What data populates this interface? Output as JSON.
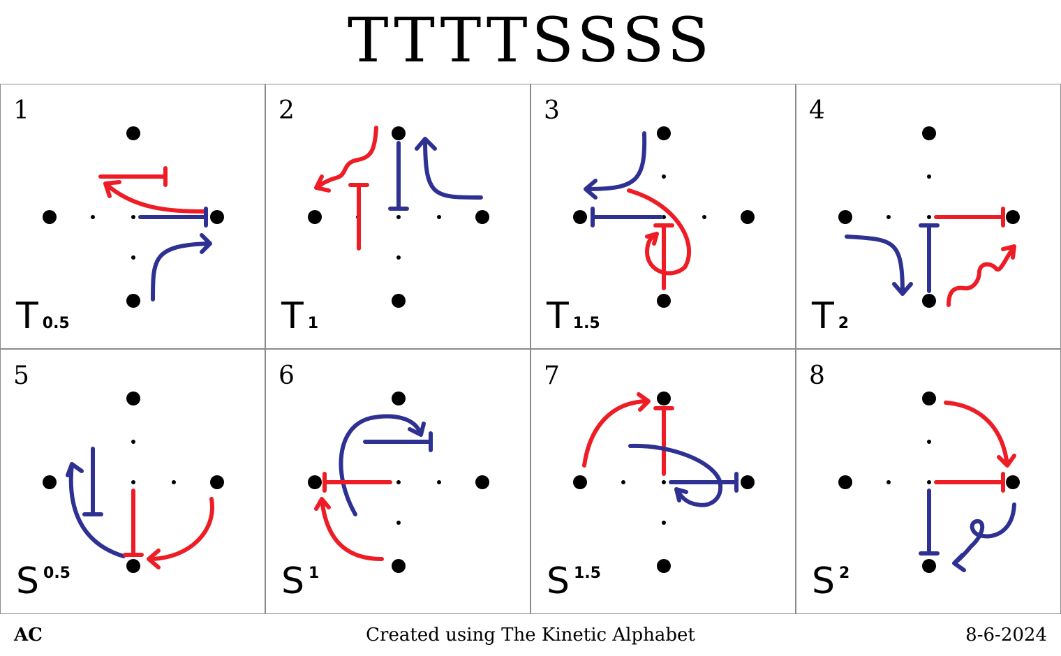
{
  "title": "TTTTSSSS",
  "cells": [
    {
      "number": "1",
      "letter": "T",
      "index": "0.5",
      "index_pos": "sub"
    },
    {
      "number": "2",
      "letter": "T",
      "index": "1",
      "index_pos": "sub"
    },
    {
      "number": "3",
      "letter": "T",
      "index": "1.5",
      "index_pos": "sub"
    },
    {
      "number": "4",
      "letter": "T",
      "index": "2",
      "index_pos": "sub"
    },
    {
      "number": "5",
      "letter": "S",
      "index": "0.5",
      "index_pos": "sup"
    },
    {
      "number": "6",
      "letter": "S",
      "index": "1",
      "index_pos": "sup"
    },
    {
      "number": "7",
      "letter": "S",
      "index": "1.5",
      "index_pos": "sup"
    },
    {
      "number": "8",
      "letter": "S",
      "index": "2",
      "index_pos": "sup"
    }
  ],
  "footer": {
    "author": "AC",
    "credit": "Created using The Kinetic Alphabet",
    "date": "8-6-2024"
  },
  "colors": {
    "red": "#ee1c25",
    "blue": "#2e3192",
    "dots": "#000000"
  }
}
